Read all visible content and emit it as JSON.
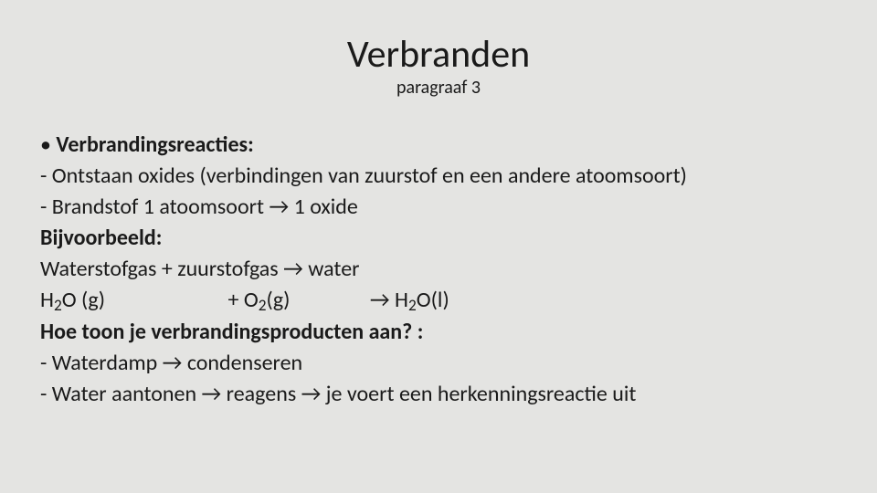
{
  "slide": {
    "background_color": "#e4e4e2",
    "text_color": "#1a1a1a",
    "title": "Verbranden",
    "title_fontsize": 42,
    "title_fontweight": 400,
    "subtitle": "paragraaf 3",
    "subtitle_fontsize": 20,
    "content_fontsize": 24,
    "line1_label": "Verbrandingsreacties:",
    "line2": "Ontstaan oxides (verbindingen van zuurstof en een andere atoomsoort)",
    "line3_pre": "Brandstof 1 atoomsoort ",
    "arrow": "→",
    "line3_post": " 1 oxide",
    "line4_label": "Bijvoorbeeld:",
    "line5_pre": "Waterstofgas + zuurstofgas ",
    "line5_post": " water",
    "formula": {
      "seg1_a": "H",
      "seg1_sub": "2",
      "seg1_b": "O (g)",
      "seg2_a": "+ O",
      "seg2_sub": "2",
      "seg2_b": "(g)",
      "seg3_arrow": "→",
      "seg3_a": " H",
      "seg3_sub": "2",
      "seg3_b": "O(l)"
    },
    "line7_label": "Hoe toon je verbrandingsproducten aan? :",
    "line8_pre": "Waterdamp ",
    "line8_post": " condenseren",
    "line9_pre": "Water aantonen ",
    "line9_mid": " reagens ",
    "line9_post": " je voert een herkenningsreactie uit"
  }
}
